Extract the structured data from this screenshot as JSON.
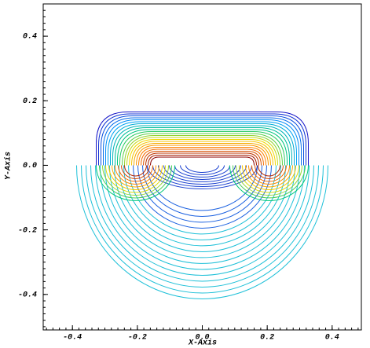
{
  "chart_data": {
    "type": "contour",
    "xlabel": "X-Axis",
    "ylabel": "Y-Axis",
    "xlim": [
      -0.49,
      0.49
    ],
    "ylim": [
      -0.51,
      0.5
    ],
    "xticks": [
      -0.4,
      -0.2,
      {
        "value": 0,
        "label": "0.0"
      },
      0.2,
      0.4
    ],
    "yticks": [
      -0.4,
      -0.2,
      {
        "value": 0,
        "label": "0.0"
      },
      0.2,
      0.4
    ]
  }
}
